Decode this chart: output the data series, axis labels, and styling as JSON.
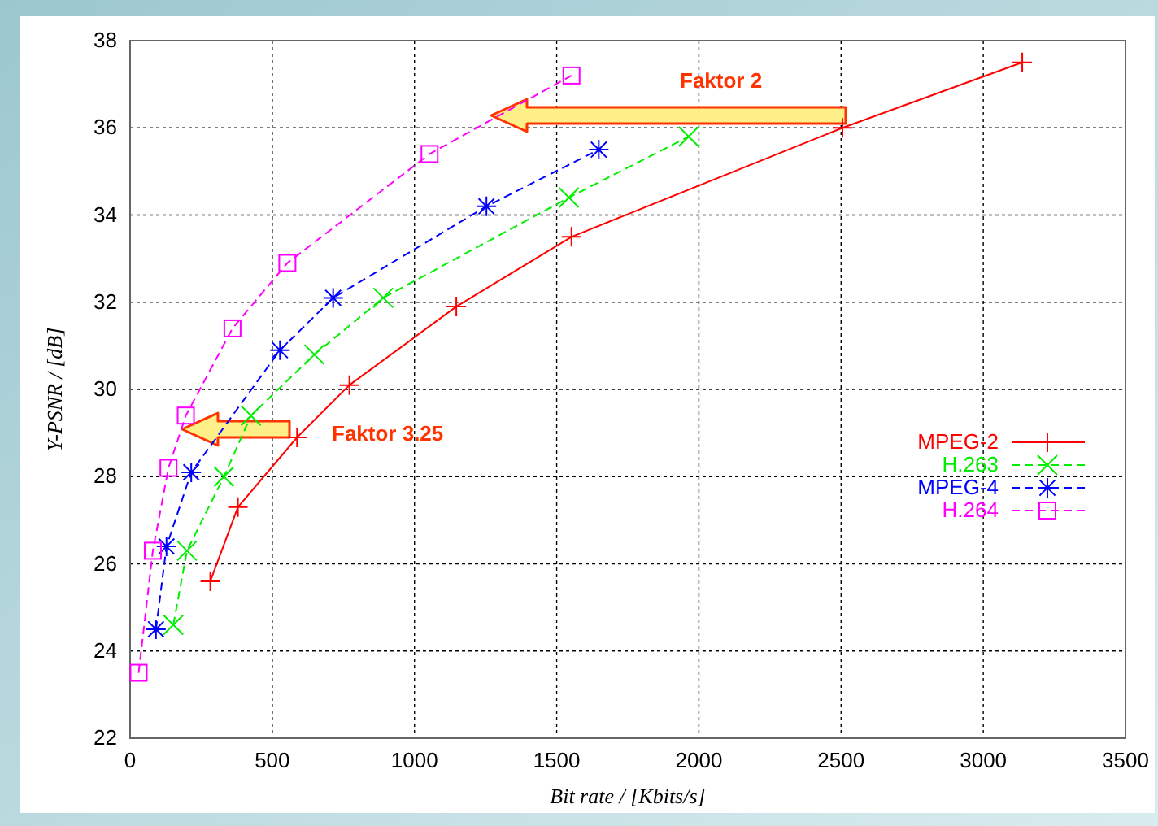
{
  "chart_data": {
    "type": "line",
    "xlabel": "Bit rate / [Kbits/s]",
    "ylabel": "Y-PSNR / [dB]",
    "xlim": [
      0,
      3500
    ],
    "xticks": [
      0,
      500,
      1000,
      1500,
      2000,
      2500,
      3000,
      3500
    ],
    "ylim": [
      22,
      38
    ],
    "yticks": [
      22,
      24,
      26,
      28,
      30,
      32,
      34,
      36,
      38
    ],
    "grid": true,
    "legend": "right",
    "series": [
      {
        "name": "MPEG-2",
        "color": "#ff0000",
        "marker": "plus",
        "line_style": "solid",
        "x": [
          282,
          379,
          587,
          771,
          1147,
          1552,
          2505,
          3137
        ],
        "values": [
          25.6,
          27.3,
          28.9,
          30.1,
          31.9,
          33.5,
          36.0,
          37.5
        ]
      },
      {
        "name": "H.263",
        "color": "#00ee00",
        "marker": "x",
        "line_style": "dashed",
        "x": [
          152,
          200,
          330,
          425,
          648,
          890,
          1543,
          1964
        ],
        "values": [
          24.6,
          26.3,
          28.0,
          29.4,
          30.8,
          32.1,
          34.4,
          35.8
        ]
      },
      {
        "name": "MPEG-4",
        "color": "#0000ff",
        "marker": "cross",
        "line_style": "dashed",
        "x": [
          91,
          128,
          215,
          527,
          714,
          1253,
          1648
        ],
        "values": [
          24.5,
          26.4,
          28.1,
          30.9,
          32.1,
          34.2,
          35.5
        ]
      },
      {
        "name": "H.264",
        "color": "#ff00ff",
        "marker": "square",
        "line_style": "dashed",
        "x": [
          30,
          80,
          135,
          196,
          360,
          553,
          1053,
          1552
        ],
        "values": [
          23.5,
          26.3,
          28.2,
          29.4,
          31.4,
          32.9,
          35.4,
          37.2
        ]
      }
    ],
    "annotations": [
      "Faktor 2",
      "Faktor 3.25"
    ]
  }
}
